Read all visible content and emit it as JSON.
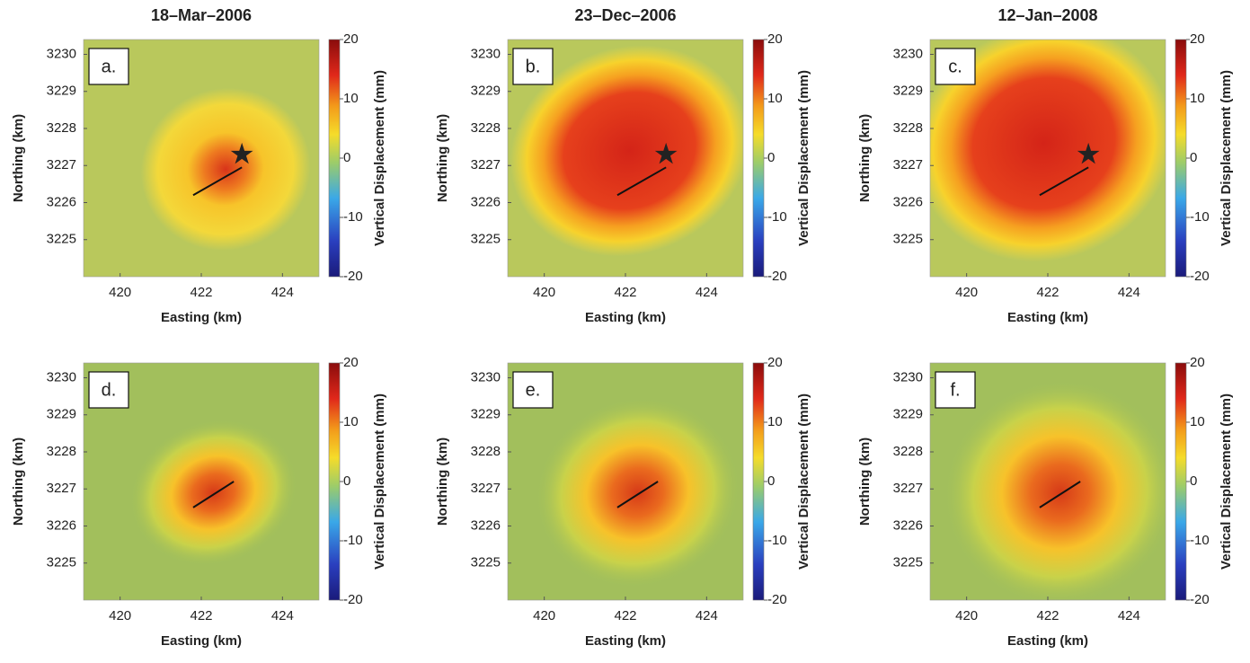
{
  "chart_data": [
    {
      "type": "heatmap",
      "title": "18–Mar–2006",
      "panel_label": "a.",
      "xlabel": "Easting (km)",
      "ylabel": "Northing (km)",
      "colorbar_label": "Vertical Displacement (mm)",
      "xlim": [
        419.1,
        424.9
      ],
      "ylim": [
        3224,
        3230.4
      ],
      "xticks": [
        420,
        422,
        424
      ],
      "yticks": [
        3225,
        3226,
        3227,
        3228,
        3229,
        3230
      ],
      "clim": [
        -20,
        20
      ],
      "cticks": [
        -20,
        -10,
        0,
        10,
        20
      ],
      "fault": {
        "x": [
          421.8,
          423
        ],
        "y": [
          3226.2,
          3226.95
        ]
      },
      "source": {
        "x": 423,
        "y": 3227.3
      }
    },
    {
      "type": "heatmap",
      "title": "23–Dec–2006",
      "panel_label": "b.",
      "xlabel": "Easting (km)",
      "ylabel": "Northing (km)",
      "colorbar_label": "Vertical Displacement (mm)",
      "xlim": [
        419.1,
        424.9
      ],
      "ylim": [
        3224,
        3230.4
      ],
      "xticks": [
        420,
        422,
        424
      ],
      "yticks": [
        3225,
        3226,
        3227,
        3228,
        3229,
        3230
      ],
      "clim": [
        -20,
        20
      ],
      "cticks": [
        -20,
        -10,
        0,
        10,
        20
      ],
      "fault": {
        "x": [
          421.8,
          423
        ],
        "y": [
          3226.2,
          3226.95
        ]
      },
      "source": {
        "x": 423,
        "y": 3227.3
      }
    },
    {
      "type": "heatmap",
      "title": "12–Jan–2008",
      "panel_label": "c.",
      "xlabel": "Easting (km)",
      "ylabel": "Northing (km)",
      "colorbar_label": "Vertical Displacement (mm)",
      "xlim": [
        419.1,
        424.9
      ],
      "ylim": [
        3224,
        3230.4
      ],
      "xticks": [
        420,
        422,
        424
      ],
      "yticks": [
        3225,
        3226,
        3227,
        3228,
        3229,
        3230
      ],
      "clim": [
        -20,
        20
      ],
      "cticks": [
        -20,
        -10,
        0,
        10,
        20
      ],
      "fault": {
        "x": [
          421.8,
          423
        ],
        "y": [
          3226.2,
          3226.95
        ]
      },
      "source": {
        "x": 423,
        "y": 3227.3
      }
    },
    {
      "type": "heatmap",
      "panel_label": "d.",
      "xlabel": "Easting (km)",
      "ylabel": "Northing (km)",
      "colorbar_label": "Vertical Displacement (mm)",
      "xlim": [
        419.1,
        424.9
      ],
      "ylim": [
        3224,
        3230.4
      ],
      "xticks": [
        420,
        422,
        424
      ],
      "yticks": [
        3225,
        3226,
        3227,
        3228,
        3229,
        3230
      ],
      "clim": [
        -20,
        20
      ],
      "cticks": [
        -20,
        -10,
        0,
        10,
        20
      ],
      "fault": {
        "x": [
          421.8,
          422.8
        ],
        "y": [
          3226.5,
          3227.2
        ]
      }
    },
    {
      "type": "heatmap",
      "panel_label": "e.",
      "xlabel": "Easting (km)",
      "ylabel": "Northing (km)",
      "colorbar_label": "Vertical Displacement (mm)",
      "xlim": [
        419.1,
        424.9
      ],
      "ylim": [
        3224,
        3230.4
      ],
      "xticks": [
        420,
        422,
        424
      ],
      "yticks": [
        3225,
        3226,
        3227,
        3228,
        3229,
        3230
      ],
      "clim": [
        -20,
        20
      ],
      "cticks": [
        -20,
        -10,
        0,
        10,
        20
      ],
      "fault": {
        "x": [
          421.8,
          422.8
        ],
        "y": [
          3226.5,
          3227.2
        ]
      }
    },
    {
      "type": "heatmap",
      "panel_label": "f.",
      "xlabel": "Easting (km)",
      "ylabel": "Northing (km)",
      "colorbar_label": "Vertical Displacement (mm)",
      "xlim": [
        419.1,
        424.9
      ],
      "ylim": [
        3224,
        3230.4
      ],
      "xticks": [
        420,
        422,
        424
      ],
      "yticks": [
        3225,
        3226,
        3227,
        3228,
        3229,
        3230
      ],
      "clim": [
        -20,
        20
      ],
      "cticks": [
        -20,
        -10,
        0,
        10,
        20
      ],
      "fault": {
        "x": [
          421.8,
          422.8
        ],
        "y": [
          3226.5,
          3227.2
        ]
      }
    }
  ]
}
